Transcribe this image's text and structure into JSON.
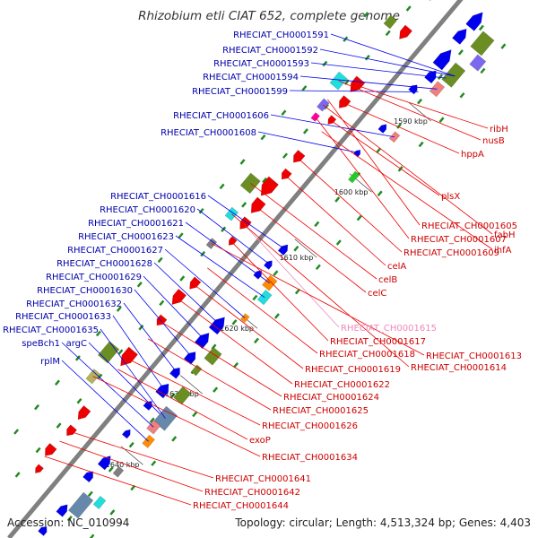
{
  "title": "Rhizobium etli CIAT 652, complete genome",
  "footer": {
    "accession": "Accession: NC_010994",
    "topology": "Topology: circular; Length: 4,513,324 bp; Genes: 4,403"
  },
  "colors": {
    "left_label": "#0000aa",
    "right_label": "#cc0000",
    "faded_label": "#ee88bb",
    "left_line": "#0000ee",
    "right_line": "#ee0000",
    "backbone": "#808080",
    "tick": "#228b22"
  },
  "position_marks": [
    {
      "label": "1590 kbp",
      "t": 0.17
    },
    {
      "label": "1600 kbp",
      "t": 0.3
    },
    {
      "label": "1610 kbp",
      "t": 0.42
    },
    {
      "label": "1620 kbp",
      "t": 0.55
    },
    {
      "label": "1630 kbp",
      "t": 0.67
    },
    {
      "label": "1640 kbp",
      "t": 0.8
    }
  ],
  "left_labels": [
    "RHECIAT_CH0001591",
    "RHECIAT_CH0001592",
    "RHECIAT_CH0001593",
    "RHECIAT_CH0001594",
    "RHECIAT_CH0001599",
    "RHECIAT_CH0001606",
    "RHECIAT_CH0001608",
    "RHECIAT_CH0001616",
    "RHECIAT_CH0001620",
    "RHECIAT_CH0001621",
    "RHECIAT_CH0001623",
    "RHECIAT_CH0001627",
    "RHECIAT_CH0001628",
    "RHECIAT_CH0001629",
    "RHECIAT_CH0001630",
    "RHECIAT_CH0001632",
    "RHECIAT_CH0001633",
    "RHECIAT_CH0001635",
    "speBch1",
    "argC",
    "rplM"
  ],
  "right_labels": [
    "ribH",
    "nusB",
    "hppA",
    "plsX",
    "RHECIAT_CH0001605",
    "fabH",
    "RHECIAT_CH0001607",
    "RHECIAT_CH0001609",
    "ihfA",
    "celA",
    "celB",
    "celC",
    "RHECIAT_CH0001615",
    "RHECIAT_CH0001617",
    "RHECIAT_CH0001613",
    "RHECIAT_CH0001618",
    "RHECIAT_CH0001614",
    "RHECIAT_CH0001619",
    "RHECIAT_CH0001622",
    "RHECIAT_CH0001624",
    "RHECIAT_CH0001625",
    "RHECIAT_CH0001626",
    "exoP",
    "RHECIAT_CH0001634",
    "RHECIAT_CH0001641",
    "RHECIAT_CH0001642",
    "RHECIAT_CH0001644"
  ]
}
